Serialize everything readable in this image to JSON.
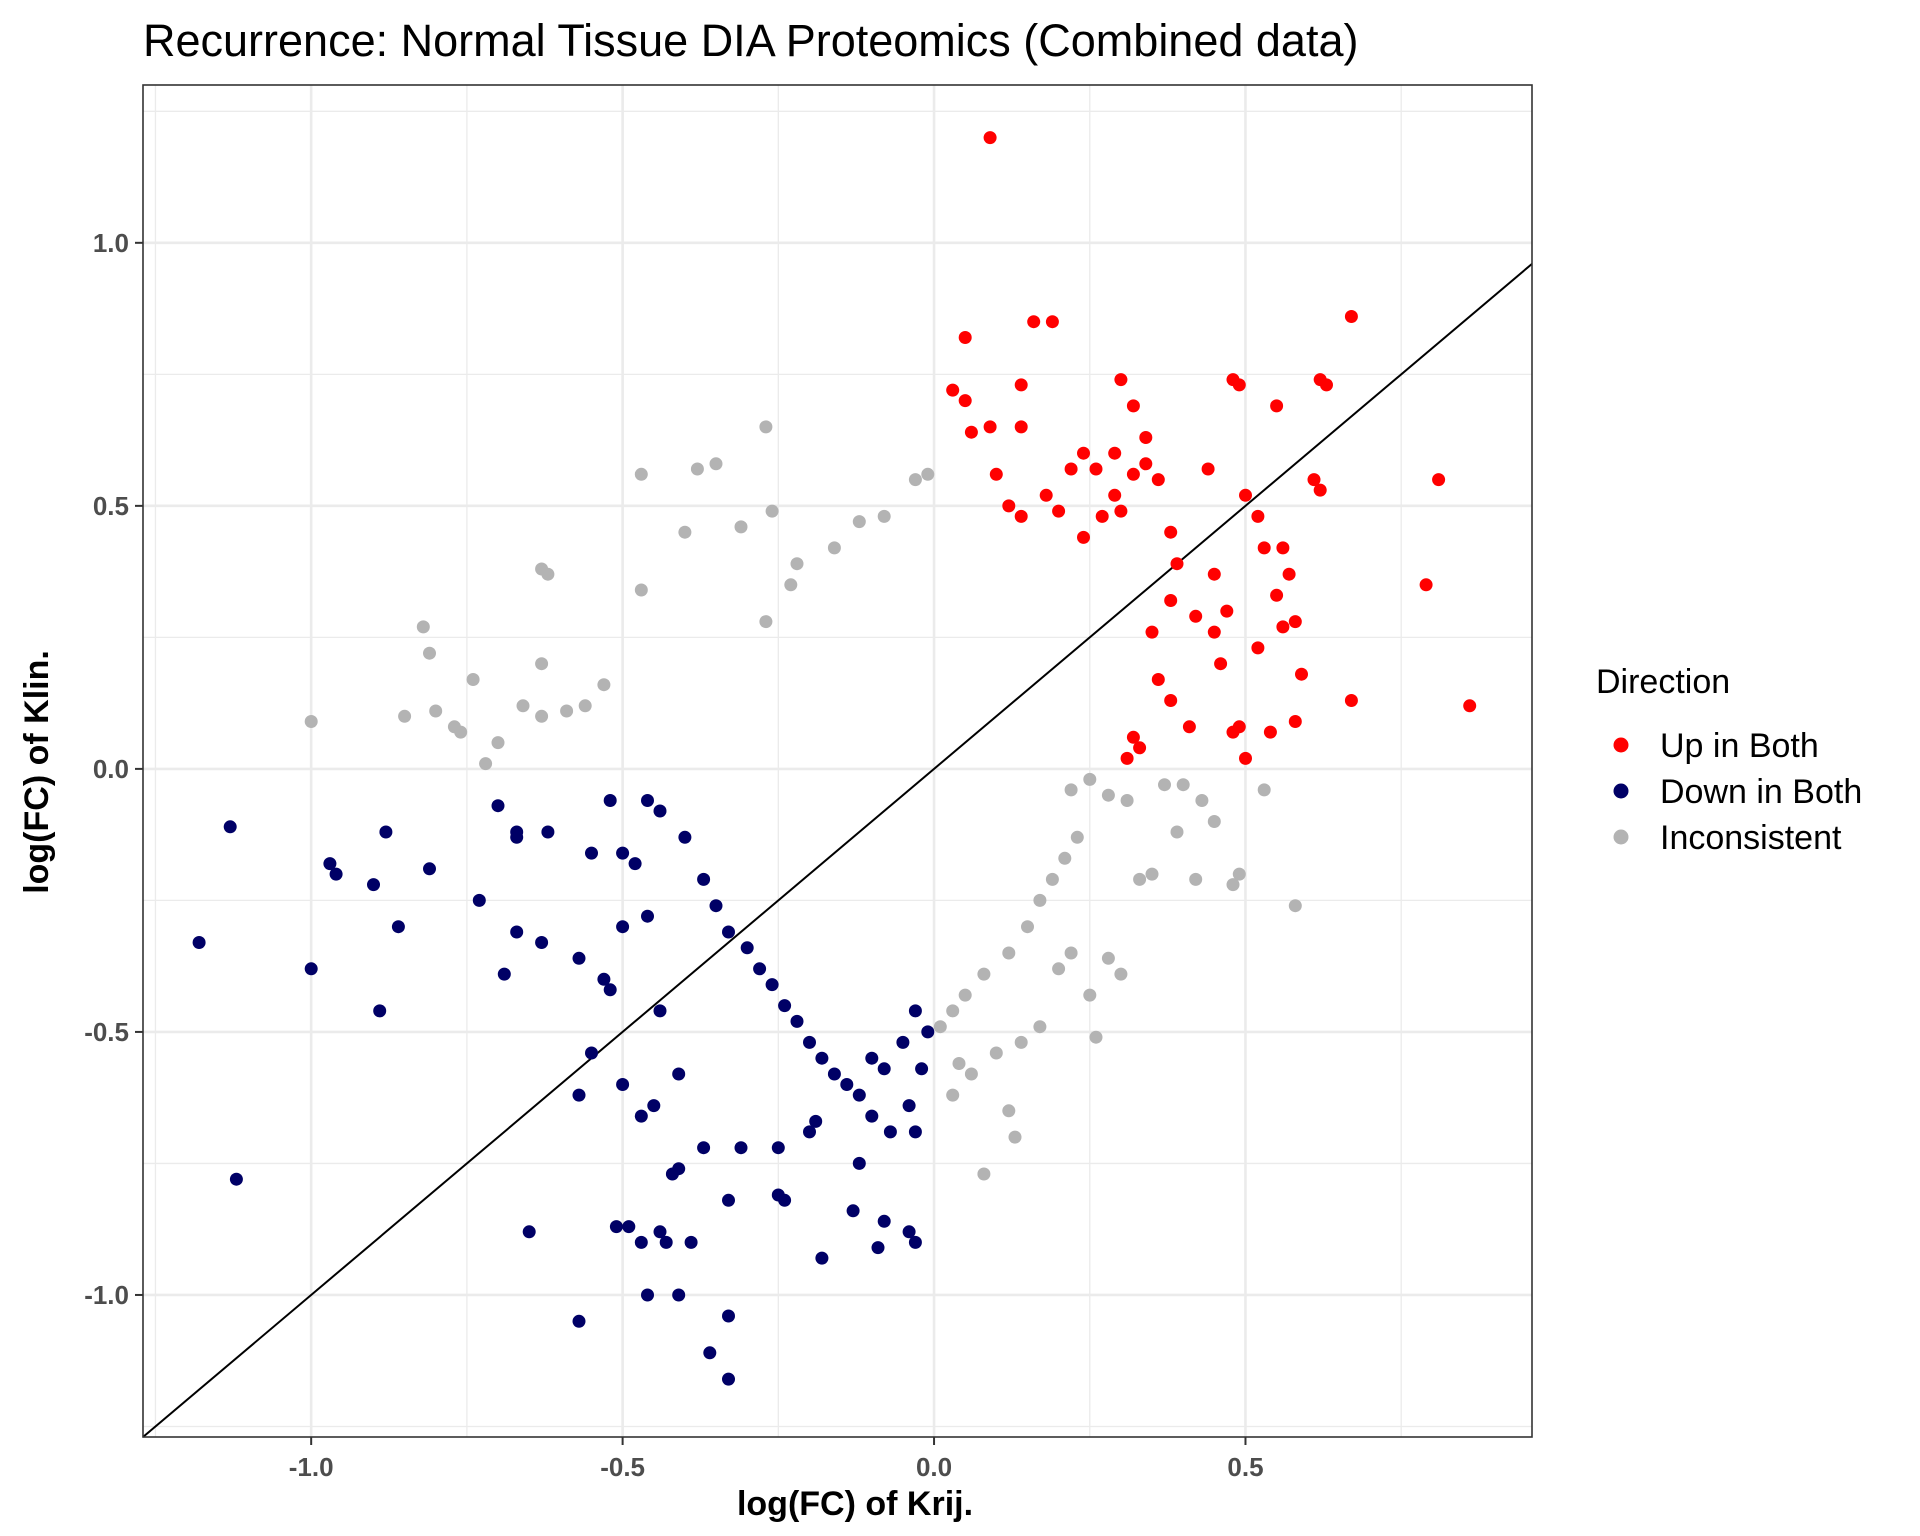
{
  "chart_data": {
    "type": "scatter",
    "title": "Recurrence: Normal Tissue DIA Proteomics (Combined data)",
    "xlabel": "log(FC) of Krij.",
    "ylabel": "log(FC) of Klin.",
    "xlim": [
      -1.27,
      0.96
    ],
    "ylim": [
      -1.27,
      1.3
    ],
    "x_ticks": [
      -1.0,
      -0.5,
      0.0,
      0.5
    ],
    "x_tick_labels": [
      "-1.0",
      "-0.5",
      "0.0",
      "0.5"
    ],
    "y_ticks": [
      -1.0,
      -0.5,
      0.0,
      0.5,
      1.0
    ],
    "y_tick_labels": [
      "-1.0",
      "-0.5",
      "0.0",
      "0.5",
      "1.0"
    ],
    "grid": true,
    "reference_line": {
      "slope": 1,
      "intercept": 0
    },
    "legend": {
      "title": "Direction",
      "position": "right"
    },
    "series": [
      {
        "name": "Up in Both",
        "color": "#ff0000",
        "points": [
          [
            0.09,
            1.2
          ],
          [
            0.19,
            0.85
          ],
          [
            0.16,
            0.85
          ],
          [
            0.05,
            0.82
          ],
          [
            0.67,
            0.86
          ],
          [
            0.06,
            0.64
          ],
          [
            0.09,
            0.65
          ],
          [
            0.14,
            0.65
          ],
          [
            0.14,
            0.73
          ],
          [
            0.03,
            0.72
          ],
          [
            0.05,
            0.7
          ],
          [
            0.48,
            0.74
          ],
          [
            0.49,
            0.73
          ],
          [
            0.62,
            0.74
          ],
          [
            0.63,
            0.73
          ],
          [
            0.55,
            0.69
          ],
          [
            0.3,
            0.74
          ],
          [
            0.32,
            0.69
          ],
          [
            0.81,
            0.55
          ],
          [
            0.79,
            0.35
          ],
          [
            0.86,
            0.12
          ],
          [
            0.67,
            0.13
          ],
          [
            0.58,
            0.28
          ],
          [
            0.59,
            0.18
          ],
          [
            0.56,
            0.42
          ],
          [
            0.57,
            0.37
          ],
          [
            0.61,
            0.55
          ],
          [
            0.62,
            0.53
          ],
          [
            0.5,
            0.52
          ],
          [
            0.52,
            0.48
          ],
          [
            0.53,
            0.42
          ],
          [
            0.55,
            0.33
          ],
          [
            0.56,
            0.27
          ],
          [
            0.52,
            0.23
          ],
          [
            0.49,
            0.08
          ],
          [
            0.5,
            0.02
          ],
          [
            0.54,
            0.07
          ],
          [
            0.58,
            0.09
          ],
          [
            0.45,
            0.26
          ],
          [
            0.45,
            0.37
          ],
          [
            0.47,
            0.3
          ],
          [
            0.44,
            0.57
          ],
          [
            0.38,
            0.13
          ],
          [
            0.41,
            0.08
          ],
          [
            0.35,
            0.26
          ],
          [
            0.38,
            0.32
          ],
          [
            0.39,
            0.39
          ],
          [
            0.42,
            0.29
          ],
          [
            0.46,
            0.2
          ],
          [
            0.48,
            0.07
          ],
          [
            0.33,
            0.04
          ],
          [
            0.31,
            0.02
          ],
          [
            0.32,
            0.06
          ],
          [
            0.36,
            0.17
          ],
          [
            0.38,
            0.45
          ],
          [
            0.3,
            0.49
          ],
          [
            0.29,
            0.52
          ],
          [
            0.26,
            0.57
          ],
          [
            0.22,
            0.57
          ],
          [
            0.18,
            0.52
          ],
          [
            0.2,
            0.49
          ],
          [
            0.24,
            0.44
          ],
          [
            0.27,
            0.48
          ],
          [
            0.32,
            0.56
          ],
          [
            0.34,
            0.63
          ],
          [
            0.29,
            0.6
          ],
          [
            0.34,
            0.58
          ],
          [
            0.36,
            0.55
          ],
          [
            0.24,
            0.6
          ],
          [
            0.12,
            0.5
          ],
          [
            0.14,
            0.48
          ],
          [
            0.1,
            0.56
          ]
        ]
      },
      {
        "name": "Down in Both",
        "color": "#000066",
        "points": [
          [
            -1.13,
            -0.11
          ],
          [
            -1.18,
            -0.33
          ],
          [
            -1.0,
            -0.38
          ],
          [
            -1.12,
            -0.78
          ],
          [
            -0.97,
            -0.18
          ],
          [
            -0.96,
            -0.2
          ],
          [
            -0.9,
            -0.22
          ],
          [
            -0.88,
            -0.12
          ],
          [
            -0.86,
            -0.3
          ],
          [
            -0.81,
            -0.19
          ],
          [
            -0.89,
            -0.46
          ],
          [
            -0.73,
            -0.25
          ],
          [
            -0.7,
            -0.07
          ],
          [
            -0.69,
            -0.39
          ],
          [
            -0.67,
            -0.31
          ],
          [
            -0.67,
            -0.12
          ],
          [
            -0.67,
            -0.13
          ],
          [
            -0.63,
            -0.33
          ],
          [
            -0.62,
            -0.12
          ],
          [
            -0.65,
            -0.88
          ],
          [
            -0.57,
            -1.05
          ],
          [
            -0.46,
            -1.0
          ],
          [
            -0.41,
            -1.0
          ],
          [
            -0.33,
            -1.04
          ],
          [
            -0.36,
            -1.11
          ],
          [
            -0.33,
            -1.16
          ],
          [
            -0.51,
            -0.87
          ],
          [
            -0.49,
            -0.87
          ],
          [
            -0.47,
            -0.9
          ],
          [
            -0.44,
            -0.88
          ],
          [
            -0.43,
            -0.9
          ],
          [
            -0.39,
            -0.9
          ],
          [
            -0.33,
            -0.82
          ],
          [
            -0.25,
            -0.81
          ],
          [
            -0.24,
            -0.82
          ],
          [
            -0.18,
            -0.93
          ],
          [
            -0.13,
            -0.84
          ],
          [
            -0.08,
            -0.86
          ],
          [
            -0.09,
            -0.91
          ],
          [
            -0.04,
            -0.88
          ],
          [
            -0.03,
            -0.9
          ],
          [
            -0.42,
            -0.77
          ],
          [
            -0.41,
            -0.76
          ],
          [
            -0.37,
            -0.72
          ],
          [
            -0.31,
            -0.72
          ],
          [
            -0.25,
            -0.72
          ],
          [
            -0.2,
            -0.69
          ],
          [
            -0.19,
            -0.67
          ],
          [
            -0.12,
            -0.75
          ],
          [
            -0.03,
            -0.69
          ],
          [
            -0.1,
            -0.66
          ],
          [
            -0.07,
            -0.69
          ],
          [
            -0.57,
            -0.62
          ],
          [
            -0.5,
            -0.6
          ],
          [
            -0.55,
            -0.54
          ],
          [
            -0.53,
            -0.4
          ],
          [
            -0.52,
            -0.42
          ],
          [
            -0.45,
            -0.64
          ],
          [
            -0.47,
            -0.66
          ],
          [
            -0.41,
            -0.58
          ],
          [
            -0.44,
            -0.46
          ],
          [
            -0.46,
            -0.28
          ],
          [
            -0.5,
            -0.3
          ],
          [
            -0.55,
            -0.16
          ],
          [
            -0.52,
            -0.06
          ],
          [
            -0.5,
            -0.16
          ],
          [
            -0.48,
            -0.18
          ],
          [
            -0.57,
            -0.36
          ],
          [
            -0.46,
            -0.06
          ],
          [
            -0.44,
            -0.08
          ],
          [
            -0.4,
            -0.13
          ],
          [
            -0.37,
            -0.21
          ],
          [
            -0.35,
            -0.26
          ],
          [
            -0.33,
            -0.31
          ],
          [
            -0.3,
            -0.34
          ],
          [
            -0.28,
            -0.38
          ],
          [
            -0.26,
            -0.41
          ],
          [
            -0.24,
            -0.45
          ],
          [
            -0.22,
            -0.48
          ],
          [
            -0.2,
            -0.52
          ],
          [
            -0.18,
            -0.55
          ],
          [
            -0.16,
            -0.58
          ],
          [
            -0.14,
            -0.6
          ],
          [
            -0.12,
            -0.62
          ],
          [
            -0.1,
            -0.55
          ],
          [
            -0.08,
            -0.57
          ],
          [
            -0.05,
            -0.52
          ],
          [
            -0.03,
            -0.46
          ],
          [
            -0.02,
            -0.57
          ],
          [
            -0.01,
            -0.5
          ],
          [
            -0.04,
            -0.64
          ]
        ]
      },
      {
        "name": "Inconsistent",
        "color": "#b3b3b3",
        "points": [
          [
            -0.27,
            0.65
          ],
          [
            -0.35,
            0.58
          ],
          [
            -0.47,
            0.56
          ],
          [
            -0.38,
            0.57
          ],
          [
            -0.26,
            0.49
          ],
          [
            -0.31,
            0.46
          ],
          [
            -0.63,
            0.38
          ],
          [
            -0.62,
            0.37
          ],
          [
            -0.82,
            0.27
          ],
          [
            -0.81,
            0.22
          ],
          [
            -0.74,
            0.17
          ],
          [
            -0.8,
            0.11
          ],
          [
            -1.0,
            0.09
          ],
          [
            -0.85,
            0.1
          ],
          [
            -0.77,
            0.08
          ],
          [
            -0.76,
            0.07
          ],
          [
            -0.7,
            0.05
          ],
          [
            -0.72,
            0.01
          ],
          [
            -0.63,
            0.2
          ],
          [
            -0.63,
            0.1
          ],
          [
            -0.66,
            0.12
          ],
          [
            -0.59,
            0.11
          ],
          [
            -0.56,
            0.12
          ],
          [
            -0.53,
            0.16
          ],
          [
            -0.47,
            0.34
          ],
          [
            -0.4,
            0.45
          ],
          [
            -0.27,
            0.28
          ],
          [
            -0.22,
            0.39
          ],
          [
            -0.23,
            0.35
          ],
          [
            -0.16,
            0.42
          ],
          [
            -0.12,
            0.47
          ],
          [
            -0.08,
            0.48
          ],
          [
            -0.03,
            0.55
          ],
          [
            -0.01,
            0.56
          ],
          [
            0.28,
            -0.36
          ],
          [
            0.3,
            -0.39
          ],
          [
            0.25,
            -0.43
          ],
          [
            0.26,
            -0.51
          ],
          [
            0.22,
            -0.35
          ],
          [
            0.2,
            -0.38
          ],
          [
            0.12,
            -0.65
          ],
          [
            0.13,
            -0.7
          ],
          [
            0.08,
            -0.77
          ],
          [
            0.04,
            -0.56
          ],
          [
            0.03,
            -0.62
          ],
          [
            0.06,
            -0.58
          ],
          [
            0.1,
            -0.54
          ],
          [
            0.14,
            -0.52
          ],
          [
            0.17,
            -0.49
          ],
          [
            0.53,
            -0.04
          ],
          [
            0.58,
            -0.26
          ],
          [
            0.42,
            -0.21
          ],
          [
            0.49,
            -0.2
          ],
          [
            0.48,
            -0.22
          ],
          [
            0.33,
            -0.21
          ],
          [
            0.35,
            -0.2
          ],
          [
            0.39,
            -0.12
          ],
          [
            0.43,
            -0.06
          ],
          [
            0.45,
            -0.1
          ],
          [
            0.4,
            -0.03
          ],
          [
            0.37,
            -0.03
          ],
          [
            0.31,
            -0.06
          ],
          [
            0.28,
            -0.05
          ],
          [
            0.25,
            -0.02
          ],
          [
            0.22,
            -0.04
          ],
          [
            0.23,
            -0.13
          ],
          [
            0.21,
            -0.17
          ],
          [
            0.19,
            -0.21
          ],
          [
            0.17,
            -0.25
          ],
          [
            0.15,
            -0.3
          ],
          [
            0.12,
            -0.35
          ],
          [
            0.08,
            -0.39
          ],
          [
            0.05,
            -0.43
          ],
          [
            0.03,
            -0.46
          ],
          [
            0.01,
            -0.49
          ]
        ]
      }
    ]
  }
}
